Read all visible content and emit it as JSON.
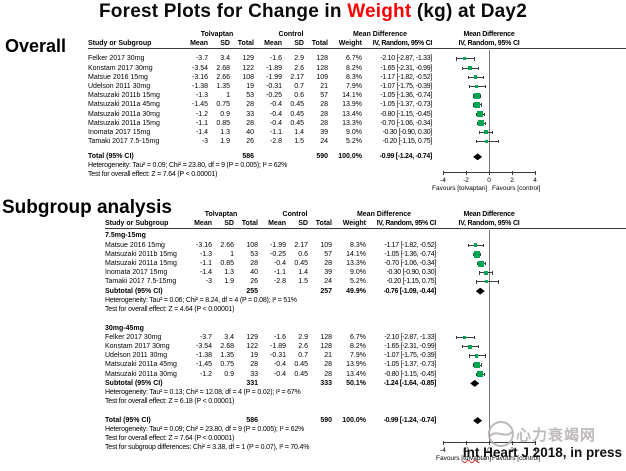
{
  "title": {
    "part1": "Forest Plots for Change in ",
    "highlight": "Weight",
    "part2": " (kg) at Day2"
  },
  "chart_data": {
    "type": "forest",
    "effect_measure": "Mean Difference",
    "model": "IV, Random, 95% CI",
    "xlim": [
      -4,
      4
    ],
    "ticks": [
      "-4",
      "-2",
      "0",
      "2",
      "4"
    ],
    "grid": false,
    "axis_labels": {
      "left": "Favours [tolvaptan]",
      "right": "Favours [control]"
    },
    "headers": {
      "study": "Study or Subgroup",
      "group1": "Tolvaptan",
      "group2": "Control",
      "mean": "Mean",
      "sd": "SD",
      "total": "Total",
      "weight": "Weight",
      "mean_diff": "Mean Difference",
      "ci": "IV, Random, 95% CI"
    },
    "overall": {
      "label": "Overall",
      "rows": [
        {
          "study": "Felker 2017 30mg",
          "t_mean": "-3.7",
          "t_sd": "3.4",
          "t_total": "129",
          "c_mean": "-1.6",
          "c_sd": "2.9",
          "c_total": "128",
          "weight": "6.7%",
          "ci_text": "-2.10 [-2.87, -1.33]",
          "est": -2.1,
          "lo": -2.87,
          "hi": -1.33
        },
        {
          "study": "Konstam 2017 30mg",
          "t_mean": "-3.54",
          "t_sd": "2.68",
          "t_total": "122",
          "c_mean": "-1.89",
          "c_sd": "2.6",
          "c_total": "128",
          "weight": "8.2%",
          "ci_text": "-1.65 [-2.31, -0.99]",
          "est": -1.65,
          "lo": -2.31,
          "hi": -0.99
        },
        {
          "study": "Matsue 2016 15mg",
          "t_mean": "-3.16",
          "t_sd": "2.66",
          "t_total": "108",
          "c_mean": "-1.99",
          "c_sd": "2.17",
          "c_total": "109",
          "weight": "8.3%",
          "ci_text": "-1.17 [-1.82, -0.52]",
          "est": -1.17,
          "lo": -1.82,
          "hi": -0.52
        },
        {
          "study": "Udelson 2011 30mg",
          "t_mean": "-1.38",
          "t_sd": "1.35",
          "t_total": "19",
          "c_mean": "-0.31",
          "c_sd": "0.7",
          "c_total": "21",
          "weight": "7.9%",
          "ci_text": "-1.07 [-1.75, -0.39]",
          "est": -1.07,
          "lo": -1.75,
          "hi": -0.39
        },
        {
          "study": "Matsuzaki 2011b 15mg",
          "t_mean": "-1.3",
          "t_sd": "1",
          "t_total": "53",
          "c_mean": "-0.25",
          "c_sd": "0.6",
          "c_total": "57",
          "weight": "14.1%",
          "ci_text": "-1.05 [-1.36, -0.74]",
          "est": -1.05,
          "lo": -1.36,
          "hi": -0.74
        },
        {
          "study": "Matsuzaki 2011a 45mg",
          "t_mean": "-1.45",
          "t_sd": "0.75",
          "t_total": "28",
          "c_mean": "-0.4",
          "c_sd": "0.45",
          "c_total": "28",
          "weight": "13.9%",
          "ci_text": "-1.05 [-1.37, -0.73]",
          "est": -1.05,
          "lo": -1.37,
          "hi": -0.73
        },
        {
          "study": "Matsuzaki 2011a 30mg",
          "t_mean": "-1.2",
          "t_sd": "0.9",
          "t_total": "33",
          "c_mean": "-0.4",
          "c_sd": "0.45",
          "c_total": "28",
          "weight": "13.4%",
          "ci_text": "-0.80 [-1.15, -0.45]",
          "est": -0.8,
          "lo": -1.15,
          "hi": -0.45
        },
        {
          "study": "Matsuzaki 2011a 15mg",
          "t_mean": "-1.1",
          "t_sd": "0.85",
          "t_total": "28",
          "c_mean": "-0.4",
          "c_sd": "0.45",
          "c_total": "28",
          "weight": "13.3%",
          "ci_text": "-0.70 [-1.06, -0.34]",
          "est": -0.7,
          "lo": -1.06,
          "hi": -0.34
        },
        {
          "study": "Inomata 2017 15mg",
          "t_mean": "-1.4",
          "t_sd": "1.3",
          "t_total": "40",
          "c_mean": "-1.1",
          "c_sd": "1.4",
          "c_total": "39",
          "weight": "9.0%",
          "ci_text": "-0.30 [-0.90, 0.30]",
          "est": -0.3,
          "lo": -0.9,
          "hi": 0.3
        },
        {
          "study": "Tamaki 2017 7.5-15mg",
          "t_mean": "-3",
          "t_sd": "1.9",
          "t_total": "26",
          "c_mean": "-2.8",
          "c_sd": "1.5",
          "c_total": "24",
          "weight": "5.2%",
          "ci_text": "-0.20 [-1.15, 0.75]",
          "est": -0.2,
          "lo": -1.15,
          "hi": 0.75
        }
      ],
      "total": {
        "study": "Total (95% CI)",
        "t_total": "586",
        "c_total": "590",
        "weight": "100.0%",
        "ci_text": "-0.99 [-1.24, -0.74]",
        "est": -0.99,
        "lo": -1.24,
        "hi": -0.74
      },
      "footnotes": [
        "Heterogeneity: Tau² = 0.09; Chi² = 23.80, df = 9 (P = 0.005); I² = 62%",
        "Test for overall effect: Z = 7.64 (P < 0.00001)"
      ]
    },
    "subgroup": {
      "label": "Subgroup analysis",
      "groups": [
        {
          "name": "7.5mg-15mg",
          "rows": [
            {
              "study": "Matsue 2016 15mg",
              "t_mean": "-3.16",
              "t_sd": "2.66",
              "t_total": "108",
              "c_mean": "-1.99",
              "c_sd": "2.17",
              "c_total": "109",
              "weight": "8.3%",
              "ci_text": "-1.17 [-1.82, -0.52]",
              "est": -1.17,
              "lo": -1.82,
              "hi": -0.52
            },
            {
              "study": "Matsuzaki 2011b 15mg",
              "t_mean": "-1.3",
              "t_sd": "1",
              "t_total": "53",
              "c_mean": "-0.25",
              "c_sd": "0.6",
              "c_total": "57",
              "weight": "14.1%",
              "ci_text": "-1.05 [-1.36, -0.74]",
              "est": -1.05,
              "lo": -1.36,
              "hi": -0.74
            },
            {
              "study": "Matsuzaki 2011a 15mg",
              "t_mean": "-1.1",
              "t_sd": "0.85",
              "t_total": "28",
              "c_mean": "-0.4",
              "c_sd": "0.45",
              "c_total": "28",
              "weight": "13.3%",
              "ci_text": "-0.70 [-1.06, -0.34]",
              "est": -0.7,
              "lo": -1.06,
              "hi": -0.34
            },
            {
              "study": "Inomata 2017 15mg",
              "t_mean": "-1.4",
              "t_sd": "1.3",
              "t_total": "40",
              "c_mean": "-1.1",
              "c_sd": "1.4",
              "c_total": "39",
              "weight": "9.0%",
              "ci_text": "-0.30 [-0.90, 0.30]",
              "est": -0.3,
              "lo": -0.9,
              "hi": 0.3
            },
            {
              "study": "Tamaki 2017 7.5-15mg",
              "t_mean": "-3",
              "t_sd": "1.9",
              "t_total": "26",
              "c_mean": "-2.8",
              "c_sd": "1.5",
              "c_total": "24",
              "weight": "5.2%",
              "ci_text": "-0.20 [-1.15, 0.75]",
              "est": -0.2,
              "lo": -1.15,
              "hi": 0.75
            }
          ],
          "subtotal": {
            "study": "Subtotal (95% CI)",
            "t_total": "255",
            "c_total": "257",
            "weight": "49.9%",
            "ci_text": "-0.76 [-1.09, -0.44]",
            "est": -0.76,
            "lo": -1.09,
            "hi": -0.44
          },
          "footnotes": [
            "Heterogeneity: Tau² = 0.06; Chi² = 8.24, df = 4 (P = 0.08); I² = 51%",
            "Test for overall effect: Z = 4.64 (P < 0.00001)"
          ]
        },
        {
          "name": "30mg-45mg",
          "rows": [
            {
              "study": "Felker 2017 30mg",
              "t_mean": "-3.7",
              "t_sd": "3.4",
              "t_total": "129",
              "c_mean": "-1.6",
              "c_sd": "2.9",
              "c_total": "128",
              "weight": "6.7%",
              "ci_text": "-2.10 [-2.87, -1.33]",
              "est": -2.1,
              "lo": -2.87,
              "hi": -1.33
            },
            {
              "study": "Konstam 2017 30mg",
              "t_mean": "-3.54",
              "t_sd": "2.68",
              "t_total": "122",
              "c_mean": "-1.89",
              "c_sd": "2.6",
              "c_total": "128",
              "weight": "8.2%",
              "ci_text": "-1.65 [-2.31, -0.99]",
              "est": -1.65,
              "lo": -2.31,
              "hi": -0.99
            },
            {
              "study": "Udelson 2011 30mg",
              "t_mean": "-1.38",
              "t_sd": "1.35",
              "t_total": "19",
              "c_mean": "-0.31",
              "c_sd": "0.7",
              "c_total": "21",
              "weight": "7.9%",
              "ci_text": "-1.07 [-1.75, -0.39]",
              "est": -1.07,
              "lo": -1.75,
              "hi": -0.39
            },
            {
              "study": "Matsuzaki 2011a 45mg",
              "t_mean": "-1.45",
              "t_sd": "0.75",
              "t_total": "28",
              "c_mean": "-0.4",
              "c_sd": "0.45",
              "c_total": "28",
              "weight": "13.9%",
              "ci_text": "-1.05 [-1.37, -0.73]",
              "est": -1.05,
              "lo": -1.37,
              "hi": -0.73
            },
            {
              "study": "Matsuzaki 2011a 30mg",
              "t_mean": "-1.2",
              "t_sd": "0.9",
              "t_total": "33",
              "c_mean": "-0.4",
              "c_sd": "0.45",
              "c_total": "28",
              "weight": "13.4%",
              "ci_text": "-0.80 [-1.15, -0.45]",
              "est": -0.8,
              "lo": -1.15,
              "hi": -0.45
            }
          ],
          "subtotal": {
            "study": "Subtotal (95% CI)",
            "t_total": "331",
            "c_total": "333",
            "weight": "50.1%",
            "ci_text": "-1.24 [-1.64, -0.85]",
            "est": -1.24,
            "lo": -1.64,
            "hi": -0.85
          },
          "footnotes": [
            "Heterogeneity: Tau² = 0.13; Chi² = 12.08, df = 4 (P = 0.02); I² = 67%",
            "Test for overall effect: Z = 6.18 (P < 0.00001)"
          ]
        }
      ],
      "total": {
        "study": "Total (95% CI)",
        "t_total": "586",
        "c_total": "590",
        "weight": "100.0%",
        "ci_text": "-0.99 [-1.24, -0.74]",
        "est": -0.99,
        "lo": -1.24,
        "hi": -0.74
      },
      "footnotes": [
        "Heterogeneity: Tau² = 0.09; Chi² = 23.80, df = 9 (P = 0.005); I² = 62%",
        "Test for overall effect: Z = 7.64 (P < 0.00001)",
        "Test for subgroup differences: Chi² = 3.38, df = 1 (P = 0.07), I² = 70.4%"
      ]
    }
  },
  "footer": {
    "citation_prefix": "Int",
    "citation_rest": " Heart J 2018, in press",
    "watermark": "心力衰竭网"
  },
  "colors": {
    "marker_green": "#00a651",
    "diamond": "#000000",
    "title_highlight": "#ff0000",
    "watermark_gray": "#b3adb0"
  }
}
